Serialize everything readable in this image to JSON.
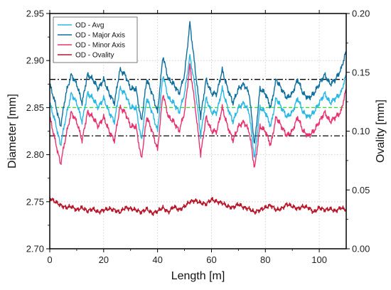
{
  "chart_data": {
    "type": "line",
    "xlabel": "Length [m]",
    "ylabel": "Diameter [mm]",
    "y2label": "Ovality [mm]",
    "xlim": [
      0,
      110
    ],
    "ylim": [
      2.7,
      2.95
    ],
    "y2lim": [
      0.0,
      0.2
    ],
    "x_ticks": [
      0,
      20,
      40,
      60,
      80,
      100
    ],
    "y_ticks": [
      2.7,
      2.75,
      2.8,
      2.85,
      2.9,
      2.95
    ],
    "y2_ticks": [
      0.0,
      0.05,
      0.1,
      0.15,
      0.2
    ],
    "x_tick_labels": [
      "0",
      "20",
      "40",
      "60",
      "80",
      "100"
    ],
    "y_tick_labels": [
      "2.70",
      "2.75",
      "2.80",
      "2.85",
      "2.90",
      "2.95"
    ],
    "y2_tick_labels": [
      "0.00",
      "0.05",
      "0.10",
      "0.15",
      "0.20"
    ],
    "grid": true,
    "legend_position": "top-left",
    "reference_lines": [
      {
        "axis": "y",
        "value": 2.88,
        "style": "dash-dot",
        "color": "#000000"
      },
      {
        "axis": "y",
        "value": 2.85,
        "style": "dashed",
        "color": "#33dd22"
      },
      {
        "axis": "y",
        "value": 2.82,
        "style": "dash-dot",
        "color": "#000000"
      }
    ],
    "x": [
      0,
      2,
      4,
      6,
      8,
      10,
      12,
      14,
      16,
      18,
      20,
      22,
      24,
      26,
      28,
      30,
      32,
      34,
      36,
      38,
      40,
      42,
      44,
      46,
      48,
      50,
      52,
      54,
      56,
      58,
      60,
      62,
      64,
      66,
      68,
      70,
      72,
      74,
      76,
      78,
      80,
      82,
      84,
      86,
      88,
      90,
      92,
      94,
      96,
      98,
      100,
      102,
      104,
      106,
      108,
      110
    ],
    "series": [
      {
        "name": "OD - Avg",
        "axis": "left",
        "color": "#29b8e6",
        "values": [
          2.855,
          2.835,
          2.81,
          2.84,
          2.865,
          2.855,
          2.835,
          2.865,
          2.86,
          2.85,
          2.86,
          2.845,
          2.835,
          2.87,
          2.865,
          2.85,
          2.85,
          2.815,
          2.86,
          2.845,
          2.825,
          2.885,
          2.86,
          2.855,
          2.845,
          2.865,
          2.905,
          2.87,
          2.82,
          2.86,
          2.845,
          2.845,
          2.87,
          2.85,
          2.835,
          2.85,
          2.855,
          2.845,
          2.795,
          2.85,
          2.845,
          2.83,
          2.86,
          2.85,
          2.84,
          2.845,
          2.86,
          2.845,
          2.84,
          2.845,
          2.855,
          2.865,
          2.855,
          2.86,
          2.865,
          2.885
        ]
      },
      {
        "name": "OD - Major Axis",
        "axis": "left",
        "color": "#0e6f9e",
        "values": [
          2.875,
          2.855,
          2.83,
          2.865,
          2.885,
          2.875,
          2.855,
          2.885,
          2.88,
          2.87,
          2.88,
          2.865,
          2.855,
          2.89,
          2.885,
          2.87,
          2.87,
          2.835,
          2.88,
          2.865,
          2.845,
          2.905,
          2.88,
          2.875,
          2.865,
          2.885,
          2.94,
          2.89,
          2.84,
          2.88,
          2.865,
          2.865,
          2.89,
          2.87,
          2.855,
          2.87,
          2.875,
          2.865,
          2.81,
          2.87,
          2.865,
          2.85,
          2.88,
          2.87,
          2.86,
          2.865,
          2.88,
          2.865,
          2.86,
          2.865,
          2.875,
          2.885,
          2.875,
          2.88,
          2.89,
          2.91
        ]
      },
      {
        "name": "OD - Minor Axis",
        "axis": "left",
        "color": "#e8336e",
        "values": [
          2.84,
          2.815,
          2.79,
          2.82,
          2.845,
          2.835,
          2.815,
          2.845,
          2.84,
          2.83,
          2.84,
          2.825,
          2.815,
          2.85,
          2.845,
          2.83,
          2.83,
          2.795,
          2.84,
          2.825,
          2.805,
          2.865,
          2.84,
          2.835,
          2.825,
          2.845,
          2.895,
          2.85,
          2.8,
          2.84,
          2.825,
          2.825,
          2.85,
          2.83,
          2.815,
          2.83,
          2.835,
          2.825,
          2.785,
          2.83,
          2.825,
          2.81,
          2.84,
          2.83,
          2.82,
          2.825,
          2.84,
          2.825,
          2.82,
          2.825,
          2.835,
          2.845,
          2.835,
          2.84,
          2.845,
          2.87
        ]
      },
      {
        "name": "OD - Ovality",
        "axis": "right",
        "color": "#b8172a",
        "values": [
          0.043,
          0.04,
          0.037,
          0.035,
          0.036,
          0.033,
          0.035,
          0.032,
          0.034,
          0.031,
          0.033,
          0.034,
          0.033,
          0.031,
          0.035,
          0.034,
          0.033,
          0.031,
          0.034,
          0.03,
          0.032,
          0.035,
          0.031,
          0.036,
          0.033,
          0.036,
          0.04,
          0.041,
          0.039,
          0.038,
          0.042,
          0.04,
          0.039,
          0.036,
          0.035,
          0.038,
          0.035,
          0.034,
          0.031,
          0.033,
          0.035,
          0.037,
          0.033,
          0.034,
          0.038,
          0.036,
          0.034,
          0.036,
          0.035,
          0.031,
          0.035,
          0.033,
          0.034,
          0.032,
          0.035,
          0.033
        ]
      }
    ]
  }
}
